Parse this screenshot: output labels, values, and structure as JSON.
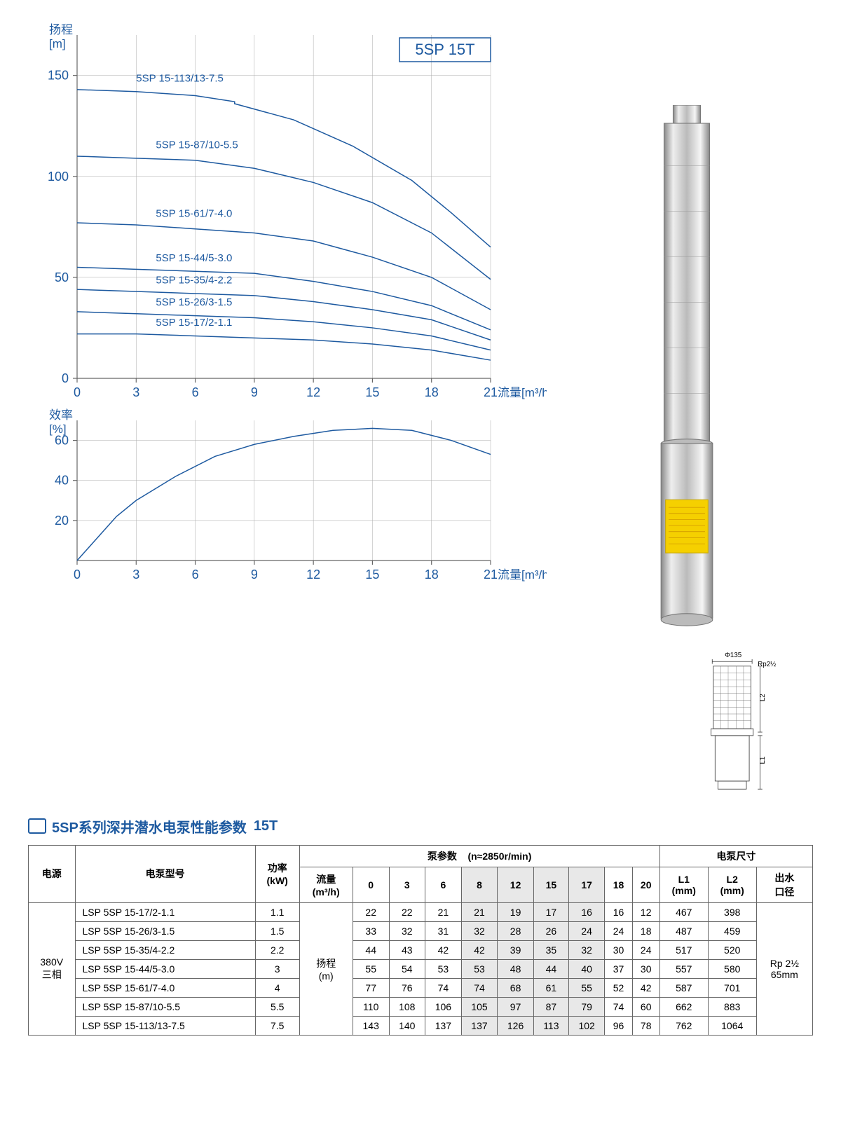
{
  "product_label": "5SP 15T",
  "head_chart": {
    "type": "line",
    "y_label_1": "扬程",
    "y_label_2": "[m]",
    "x_label": "流量[m³/h]",
    "x_ticks": [
      0,
      3,
      6,
      9,
      12,
      15,
      18,
      21
    ],
    "y_ticks": [
      0,
      50,
      100,
      150
    ],
    "xlim": [
      0,
      21
    ],
    "ylim": [
      0,
      170
    ],
    "line_color": "#1e5aa0",
    "grid_color": "#aaaaaa",
    "curves": [
      {
        "label": "5SP 15-113/13-7.5",
        "lx": 3,
        "ly": 147,
        "pts": [
          [
            0,
            143
          ],
          [
            3,
            142
          ],
          [
            6,
            140
          ],
          [
            8,
            137
          ],
          [
            8,
            136
          ],
          [
            11,
            128
          ],
          [
            14,
            115
          ],
          [
            17,
            98
          ],
          [
            19,
            82
          ],
          [
            21,
            65
          ]
        ]
      },
      {
        "label": "5SP 15-87/10-5.5",
        "lx": 4,
        "ly": 114,
        "pts": [
          [
            0,
            110
          ],
          [
            3,
            109
          ],
          [
            6,
            108
          ],
          [
            9,
            104
          ],
          [
            12,
            97
          ],
          [
            15,
            87
          ],
          [
            18,
            72
          ],
          [
            21,
            49
          ]
        ]
      },
      {
        "label": "5SP 15-61/7-4.0",
        "lx": 4,
        "ly": 80,
        "pts": [
          [
            0,
            77
          ],
          [
            3,
            76
          ],
          [
            6,
            74
          ],
          [
            9,
            72
          ],
          [
            12,
            68
          ],
          [
            15,
            60
          ],
          [
            18,
            50
          ],
          [
            21,
            34
          ]
        ]
      },
      {
        "label": "5SP 15-44/5-3.0",
        "lx": 4,
        "ly": 58,
        "pts": [
          [
            0,
            55
          ],
          [
            3,
            54
          ],
          [
            6,
            53
          ],
          [
            9,
            52
          ],
          [
            12,
            48
          ],
          [
            15,
            43
          ],
          [
            18,
            36
          ],
          [
            21,
            24
          ]
        ]
      },
      {
        "label": "5SP 15-35/4-2.2",
        "lx": 4,
        "ly": 47,
        "pts": [
          [
            0,
            44
          ],
          [
            3,
            43
          ],
          [
            6,
            42
          ],
          [
            9,
            41
          ],
          [
            12,
            38
          ],
          [
            15,
            34
          ],
          [
            18,
            29
          ],
          [
            21,
            19
          ]
        ]
      },
      {
        "label": "5SP 15-26/3-1.5",
        "lx": 4,
        "ly": 36,
        "pts": [
          [
            0,
            33
          ],
          [
            3,
            32
          ],
          [
            6,
            31
          ],
          [
            9,
            30
          ],
          [
            12,
            28
          ],
          [
            15,
            25
          ],
          [
            18,
            21
          ],
          [
            21,
            14
          ]
        ]
      },
      {
        "label": "5SP 15-17/2-1.1",
        "lx": 4,
        "ly": 26,
        "pts": [
          [
            0,
            22
          ],
          [
            3,
            22
          ],
          [
            6,
            21
          ],
          [
            9,
            20
          ],
          [
            12,
            19
          ],
          [
            15,
            17
          ],
          [
            18,
            14
          ],
          [
            21,
            9
          ]
        ]
      }
    ]
  },
  "eff_chart": {
    "type": "line",
    "y_label_1": "效率",
    "y_label_2": "[%]",
    "x_label": "流量[m³/h]",
    "x_ticks": [
      0,
      3,
      6,
      9,
      12,
      15,
      18,
      21
    ],
    "y_ticks": [
      0,
      20,
      40,
      60
    ],
    "xlim": [
      0,
      21
    ],
    "ylim": [
      0,
      70
    ],
    "line_color": "#1e5aa0",
    "grid_color": "#aaaaaa",
    "curve": {
      "pts": [
        [
          0,
          0
        ],
        [
          2,
          22
        ],
        [
          3,
          30
        ],
        [
          5,
          42
        ],
        [
          7,
          52
        ],
        [
          9,
          58
        ],
        [
          11,
          62
        ],
        [
          13,
          65
        ],
        [
          15,
          66
        ],
        [
          17,
          65
        ],
        [
          19,
          60
        ],
        [
          21,
          53
        ]
      ]
    }
  },
  "dimension_diagram": {
    "width_label": "Φ135",
    "thread_label": "Rp2½",
    "l1": "L1",
    "l2": "L2"
  },
  "section_title_main": "5SP系列深井潜水电泵性能参数",
  "section_title_sub": "15T",
  "table": {
    "header": {
      "power_source": "电源",
      "model": "电泵型号",
      "power": "功率",
      "power_unit": "(kW)",
      "pump_params": "泵参数",
      "rpm": "(n≈2850r/min)",
      "dimensions": "电泵尺寸",
      "flow": "流量",
      "flow_unit": "(m³/h)",
      "head": "扬程",
      "head_unit": "(m)",
      "L1": "L1",
      "L1_unit": "(mm)",
      "L2": "L2",
      "L2_unit": "(mm)",
      "outlet": "出水",
      "outlet2": "口径"
    },
    "flow_cols": [
      "0",
      "3",
      "6",
      "8",
      "12",
      "15",
      "17",
      "18",
      "20"
    ],
    "shaded_cols": [
      3,
      4,
      5,
      6
    ],
    "power_source_value": "380V",
    "power_source_value2": "三相",
    "outlet_value1": "Rp 2½",
    "outlet_value2": "65mm",
    "rows": [
      {
        "model": "LSP 5SP 15-17/2-1.1",
        "kw": "1.1",
        "h": [
          "22",
          "22",
          "21",
          "21",
          "19",
          "17",
          "16",
          "16",
          "12"
        ],
        "L1": "467",
        "L2": "398"
      },
      {
        "model": "LSP 5SP 15-26/3-1.5",
        "kw": "1.5",
        "h": [
          "33",
          "32",
          "31",
          "32",
          "28",
          "26",
          "24",
          "24",
          "18"
        ],
        "L1": "487",
        "L2": "459"
      },
      {
        "model": "LSP 5SP 15-35/4-2.2",
        "kw": "2.2",
        "h": [
          "44",
          "43",
          "42",
          "42",
          "39",
          "35",
          "32",
          "30",
          "24"
        ],
        "L1": "517",
        "L2": "520"
      },
      {
        "model": "LSP 5SP 15-44/5-3.0",
        "kw": "3",
        "h": [
          "55",
          "54",
          "53",
          "53",
          "48",
          "44",
          "40",
          "37",
          "30"
        ],
        "L1": "557",
        "L2": "580"
      },
      {
        "model": "LSP 5SP 15-61/7-4.0",
        "kw": "4",
        "h": [
          "77",
          "76",
          "74",
          "74",
          "68",
          "61",
          "55",
          "52",
          "42"
        ],
        "L1": "587",
        "L2": "701"
      },
      {
        "model": "LSP 5SP 15-87/10-5.5",
        "kw": "5.5",
        "h": [
          "110",
          "108",
          "106",
          "105",
          "97",
          "87",
          "79",
          "74",
          "60"
        ],
        "L1": "662",
        "L2": "883"
      },
      {
        "model": "LSP 5SP 15-113/13-7.5",
        "kw": "7.5",
        "h": [
          "143",
          "140",
          "137",
          "137",
          "126",
          "113",
          "102",
          "96",
          "78"
        ],
        "L1": "762",
        "L2": "1064"
      }
    ]
  }
}
